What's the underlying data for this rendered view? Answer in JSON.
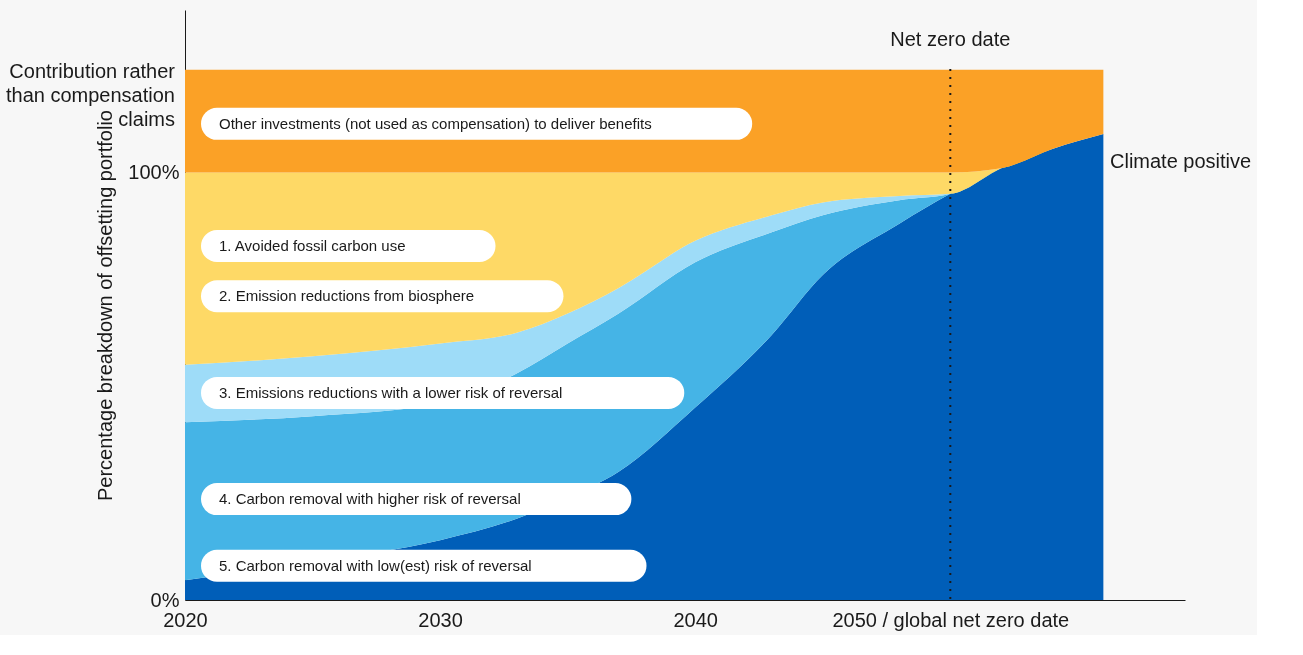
{
  "chart_data": {
    "type": "area",
    "stacked": true,
    "ylabel": "Percentage breakdown of offsetting portfolio",
    "xlim": [
      2020,
      2059.2
    ],
    "xticks": [
      2020,
      2030,
      2040,
      {
        "value": 2050,
        "label": "2050 / global net zero date"
      }
    ],
    "ylim": [
      0,
      138
    ],
    "yticks": [
      {
        "value": 0,
        "label": "0%"
      },
      {
        "value": 100,
        "label": "100%"
      }
    ],
    "grid": false,
    "x": [
      2020,
      2025,
      2030,
      2033,
      2035,
      2037,
      2040,
      2043,
      2045,
      2048,
      2050,
      2052,
      2054,
      2056
    ],
    "series": [
      {
        "color": "#005eb8",
        "values": [
          4.6,
          9,
          14,
          19,
          24,
          30,
          45,
          62,
          76,
          88,
          95,
          101,
          105.5,
          109
        ]
      },
      {
        "color": "#45b4e6",
        "values": [
          37,
          34,
          32,
          34,
          36,
          37,
          34,
          24,
          14,
          5.5,
          0,
          0,
          0,
          0
        ]
      },
      {
        "color": "#9edcf8",
        "values": [
          13.4,
          14,
          14,
          9.5,
          7,
          6,
          5,
          4,
          3,
          1,
          0,
          0,
          0,
          0
        ]
      },
      {
        "color": "#fed966",
        "values": [
          45,
          43,
          40,
          37.5,
          33,
          27,
          16,
          10,
          7,
          5.5,
          5,
          0,
          0,
          0
        ]
      },
      {
        "color": "#fba126",
        "values": [
          24,
          24,
          24,
          24,
          24,
          24,
          24,
          24,
          24,
          24,
          24,
          23,
          18.5,
          15
        ]
      }
    ],
    "ref_lines": [
      {
        "axis": "x",
        "value": 2050,
        "label": "Net zero date",
        "color": "#1a1a1a",
        "line_style": "dotted"
      }
    ],
    "annotations": [
      "Other investments (not used as compensation) to deliver benefits",
      "1.   Avoided fossil carbon use",
      "2.   Emission reductions from biosphere",
      "3.   Emissions reductions with a lower risk of reversal",
      "4.   Carbon removal with higher risk of reversal",
      "5.   Carbon removal with low(est) risk of reversal",
      "Climate positive",
      "Contribution rather\nthan compensation\nclaims"
    ]
  }
}
